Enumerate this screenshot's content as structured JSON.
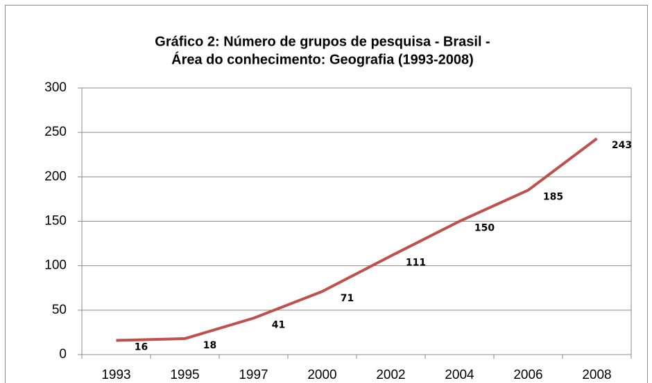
{
  "chart_data": {
    "type": "line",
    "title": [
      "Gráfico 2: Número de grupos de pesquisa - Brasil -",
      "Área do conhecimento: Geografia (1993-2008)"
    ],
    "categories": [
      "1993",
      "1995",
      "1997",
      "2000",
      "2002",
      "2004",
      "2006",
      "2008"
    ],
    "series": [
      {
        "name": "Geografia",
        "color": "#c0504d",
        "values": [
          16,
          18,
          41,
          71,
          111,
          150,
          185,
          243
        ]
      }
    ],
    "ylim": [
      0,
      300
    ],
    "yticks": [
      0,
      50,
      100,
      150,
      200,
      250,
      300
    ],
    "grid": true,
    "data_labels": true
  }
}
